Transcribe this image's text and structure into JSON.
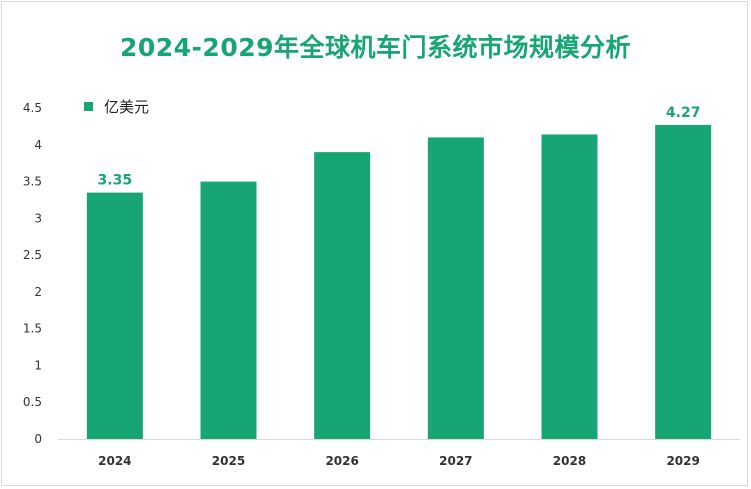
{
  "colors": {
    "bar": "#17a673",
    "title": "#17a673",
    "axis": "#d9d9d9"
  },
  "chart_data": {
    "type": "bar",
    "title": "2024-2029年全球机车门系统市场规模分析",
    "categories": [
      "2024",
      "2025",
      "2026",
      "2027",
      "2028",
      "2029"
    ],
    "series": [
      {
        "name": "亿美元",
        "values": [
          3.35,
          3.5,
          3.9,
          4.1,
          4.14,
          4.27
        ]
      }
    ],
    "data_labels": [
      {
        "category": "2024",
        "text": "3.35"
      },
      {
        "category": "2029",
        "text": "4.27"
      }
    ],
    "y_ticks": [
      "0",
      "0.5",
      "1",
      "1.5",
      "2",
      "2.5",
      "3",
      "3.5",
      "4",
      "4.5"
    ],
    "ylim": [
      0,
      4.5
    ],
    "xlabel": "",
    "ylabel": "",
    "legend": "top-left",
    "grid": false
  }
}
